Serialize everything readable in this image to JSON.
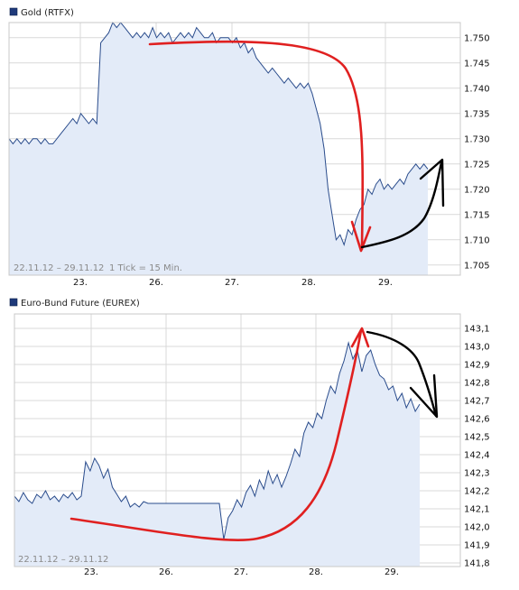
{
  "chart_data": [
    {
      "type": "line",
      "title": "Gold (RTFX)",
      "range_label": "22.11.12 – 29.11.12",
      "tick_note": "1 Tick = 15 Min.",
      "x_labels": [
        "23.",
        "26.",
        "27.",
        "28.",
        "29."
      ],
      "y_ticks": [
        "1.705",
        "1.710",
        "1.715",
        "1.720",
        "1.725",
        "1.730",
        "1.735",
        "1.740",
        "1.745",
        "1.750"
      ],
      "ylim": [
        1703,
        1753
      ],
      "grid": true,
      "series": [
        {
          "values": [
            1730,
            1729,
            1730,
            1729,
            1730,
            1729,
            1730,
            1730,
            1729,
            1730,
            1729,
            1729,
            1730,
            1731,
            1732,
            1733,
            1734,
            1733,
            1735,
            1734,
            1733,
            1734,
            1733,
            1749,
            1750,
            1751,
            1753,
            1752,
            1753,
            1752,
            1751,
            1750,
            1751,
            1750,
            1751,
            1750,
            1752,
            1750,
            1751,
            1750,
            1751,
            1749,
            1750,
            1751,
            1750,
            1751,
            1750,
            1752,
            1751,
            1750,
            1750,
            1751,
            1749,
            1750,
            1750,
            1750,
            1749,
            1750,
            1748,
            1749,
            1747,
            1748,
            1746,
            1745,
            1744,
            1743,
            1744,
            1743,
            1742,
            1741,
            1742,
            1741,
            1740,
            1741,
            1740,
            1741,
            1739,
            1736,
            1733,
            1728,
            1720,
            1715,
            1710,
            1711,
            1709,
            1712,
            1711,
            1714,
            1716,
            1717,
            1720,
            1719,
            1721,
            1722,
            1720,
            1721,
            1720,
            1721,
            1722,
            1721,
            1723,
            1724,
            1725,
            1724,
            1725,
            1724
          ]
        }
      ]
    },
    {
      "type": "line",
      "title": "Euro-Bund Future (EUREX)",
      "range_label": "22.11.12 – 29.11.12",
      "x_labels": [
        "23.",
        "26.",
        "27.",
        "28.",
        "29."
      ],
      "y_ticks": [
        "141,8",
        "141,9",
        "142,0",
        "142,1",
        "142,2",
        "142,3",
        "142,4",
        "142,5",
        "142,6",
        "142,7",
        "142,8",
        "142,9",
        "143,0",
        "143,1"
      ],
      "ylim": [
        141.78,
        143.18
      ],
      "grid": true,
      "series": [
        {
          "values": [
            142.17,
            142.14,
            142.19,
            142.15,
            142.13,
            142.18,
            142.16,
            142.2,
            142.15,
            142.17,
            142.14,
            142.18,
            142.16,
            142.19,
            142.15,
            142.17,
            142.36,
            142.31,
            142.38,
            142.34,
            142.27,
            142.32,
            142.22,
            142.18,
            142.14,
            142.17,
            142.11,
            142.13,
            142.11,
            142.14,
            142.13,
            142.13,
            142.13,
            142.13,
            142.13,
            142.13,
            142.13,
            142.13,
            142.13,
            142.13,
            142.13,
            142.13,
            142.13,
            142.13,
            142.13,
            142.13,
            142.13,
            141.93,
            142.05,
            142.09,
            142.15,
            142.11,
            142.19,
            142.23,
            142.17,
            142.26,
            142.21,
            142.31,
            142.24,
            142.29,
            142.22,
            142.28,
            142.35,
            142.43,
            142.39,
            142.52,
            142.58,
            142.55,
            142.63,
            142.6,
            142.7,
            142.78,
            142.74,
            142.85,
            142.92,
            143.02,
            142.93,
            142.98,
            142.86,
            142.95,
            142.98,
            142.9,
            142.84,
            142.82,
            142.76,
            142.78,
            142.7,
            142.74,
            142.66,
            142.71,
            142.64,
            142.68
          ]
        }
      ]
    }
  ]
}
